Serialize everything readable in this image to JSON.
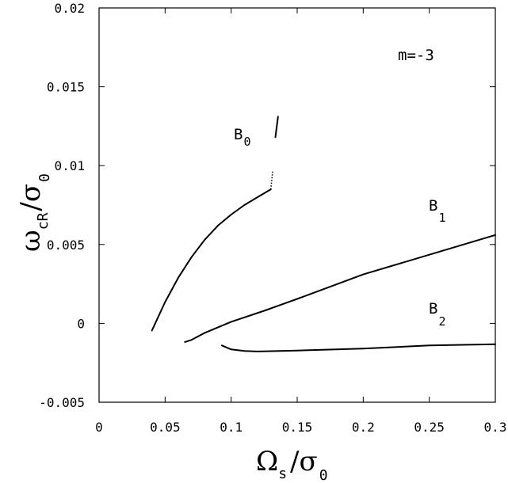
{
  "chart_data": {
    "type": "line",
    "xlim": [
      0,
      0.3
    ],
    "ylim": [
      -0.005,
      0.02
    ],
    "x_ticks": [
      0,
      0.05,
      0.1,
      0.15,
      0.2,
      0.25,
      0.3
    ],
    "x_tick_labels": [
      "0",
      "0.05",
      "0.1",
      "0.15",
      "0.2",
      "0.25",
      "0.3"
    ],
    "y_ticks": [
      -0.005,
      0,
      0.005,
      0.01,
      0.015,
      0.02
    ],
    "y_tick_labels": [
      "-0.005",
      "0",
      "0.005",
      "0.01",
      "0.015",
      "0.02"
    ],
    "xlabel": {
      "main": "Ω",
      "sub": "s",
      "sep": "/",
      "den": "σ",
      "den_sub": "0"
    },
    "ylabel": {
      "main": "ω",
      "sub": "cR",
      "sep": "/",
      "den": "σ",
      "den_sub": "0"
    },
    "annotation": "m=-3",
    "grid": false,
    "series": [
      {
        "name": "B_0",
        "label_main": "B",
        "label_sub": "0",
        "x": [
          0.04,
          0.05,
          0.06,
          0.07,
          0.08,
          0.09,
          0.1,
          0.11,
          0.12,
          0.13
        ],
        "y": [
          -0.00045,
          0.00135,
          0.0029,
          0.0042,
          0.0053,
          0.0062,
          0.0069,
          0.0075,
          0.008,
          0.0085
        ]
      },
      {
        "name": "B_0 (dotted continuation)",
        "x": [
          0.13,
          0.1315
        ],
        "y": [
          0.0085,
          0.0097
        ]
      },
      {
        "name": "B_0 (isolated segment)",
        "x": [
          0.1335,
          0.1355
        ],
        "y": [
          0.0118,
          0.0131
        ]
      },
      {
        "name": "B_1",
        "label_main": "B",
        "label_sub": "1",
        "x": [
          0.065,
          0.07,
          0.08,
          0.1,
          0.125,
          0.15,
          0.2,
          0.25,
          0.3
        ],
        "y": [
          -0.00118,
          -0.00105,
          -0.0006,
          0.0001,
          0.0008,
          0.00155,
          0.0031,
          0.00435,
          0.0056
        ]
      },
      {
        "name": "B_2",
        "label_main": "B",
        "label_sub": "2",
        "x": [
          0.093,
          0.1,
          0.11,
          0.12,
          0.15,
          0.2,
          0.25,
          0.3
        ],
        "y": [
          -0.0014,
          -0.00165,
          -0.00175,
          -0.00178,
          -0.00172,
          -0.0016,
          -0.0014,
          -0.00132
        ]
      }
    ]
  }
}
